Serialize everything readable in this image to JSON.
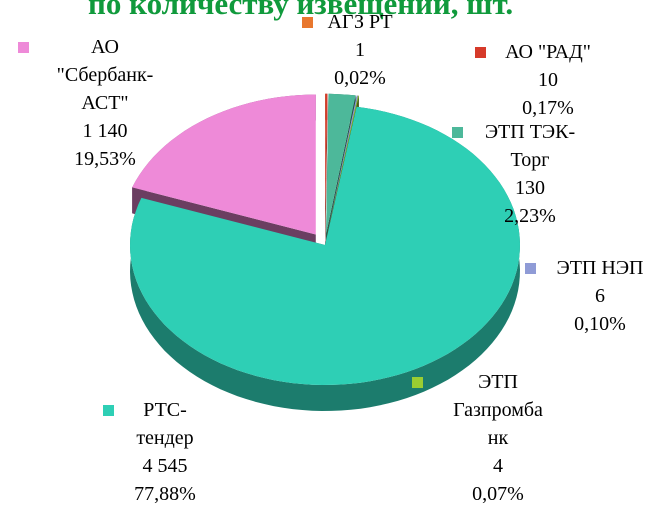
{
  "chart_data": {
    "type": "pie3d",
    "title": "по количеству извещений, шт.",
    "categories": [
      "АГЗ РТ",
      "АО \"РАД\"",
      "ЭТП ТЭК-Торг",
      "ЭТП НЭП",
      "ЭТП Газпромбанк",
      "РТС-тендер",
      "АО \"Сбербанк-АСТ\""
    ],
    "values": [
      1,
      10,
      130,
      6,
      4,
      4545,
      1140
    ],
    "value_labels": [
      "1",
      "10",
      "130",
      "6",
      "4",
      "4 545",
      "1 140"
    ],
    "percents": [
      0.02,
      0.17,
      2.23,
      0.1,
      0.07,
      77.88,
      19.53
    ],
    "percent_labels": [
      "0,02%",
      "0,17%",
      "2,23%",
      "0,10%",
      "0,07%",
      "77,88%",
      "19,53%"
    ],
    "colors": [
      "#e8772e",
      "#d63a2a",
      "#4db89a",
      "#8f9bd6",
      "#9acd32",
      "#2ecfb5",
      "#ee8ad8"
    ]
  }
}
